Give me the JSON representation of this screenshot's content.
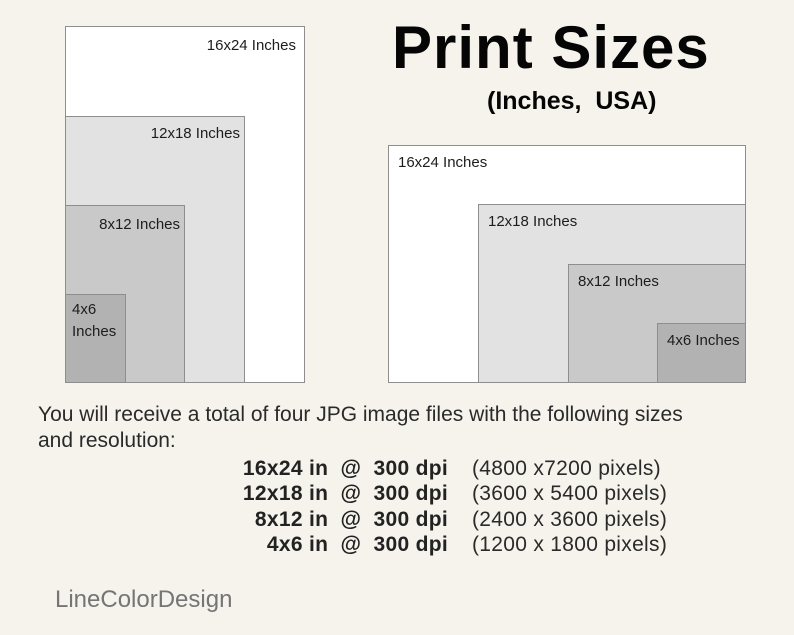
{
  "title": {
    "heading": "Print Sizes",
    "subheading": "(Inches,  USA)"
  },
  "palette": {
    "background": "#f5f3ec",
    "size_16x24_fill": "#ffffff",
    "size_12x18_fill": "#e2e2e2",
    "size_8x12_fill": "#c9c9c9",
    "size_4x6_fill": "#b2b2b2",
    "rect_border": "#8e8e8e"
  },
  "portrait_diagram": {
    "orientation": "portrait",
    "labels": {
      "size_16x24": "16x24 Inches",
      "size_12x18": "12x18 Inches",
      "size_8x12": "8x12 Inches",
      "size_4x6": "4x6\nInches"
    }
  },
  "landscape_diagram": {
    "orientation": "landscape",
    "labels": {
      "size_16x24": "16x24 Inches",
      "size_12x18": "12x18 Inches",
      "size_8x12": "8x12 Inches",
      "size_4x6": "4x6 Inches"
    }
  },
  "description": {
    "line1": "You will receive a total of four JPG image files with the following sizes",
    "line2": "and resolution:"
  },
  "files": [
    {
      "size_dpi": "16x24 in  @  300 dpi",
      "pixels": "(4800 x7200 pixels)"
    },
    {
      "size_dpi": "12x18 in  @  300 dpi",
      "pixels": "(3600 x 5400 pixels)"
    },
    {
      "size_dpi": "8x12 in  @  300 dpi",
      "pixels": "(2400 x 3600 pixels)"
    },
    {
      "size_dpi": "4x6 in  @  300 dpi",
      "pixels": "(1200 x 1800 pixels)"
    }
  ],
  "watermark": "LineColorDesign"
}
